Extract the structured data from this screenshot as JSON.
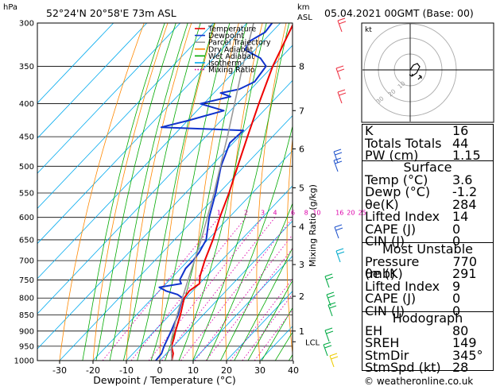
{
  "header": {
    "location": "52°24'N  20°58'E  73m  ASL",
    "datetime": "05.04.2021  00GMT  (Base: 00)",
    "hpa_label": "hPa",
    "km_label": "km",
    "asl_label": "ASL"
  },
  "legend": {
    "items": [
      {
        "label": "Temperature",
        "color": "#ee0000",
        "style": "solid"
      },
      {
        "label": "Dewpoint",
        "color": "#1133cc",
        "style": "solid"
      },
      {
        "label": "Parcel Trajectory",
        "color": "#999999",
        "style": "solid"
      },
      {
        "label": "Dry Adiabat",
        "color": "#ff8800",
        "style": "solid"
      },
      {
        "label": "Wet Adiabat",
        "color": "#00aa00",
        "style": "solid"
      },
      {
        "label": "Isotherm",
        "color": "#00aaee",
        "style": "solid"
      },
      {
        "label": "Mixing Ratio",
        "color": "#dd00aa",
        "style": "dotted"
      }
    ]
  },
  "chart_data": {
    "type": "line",
    "xlabel": "Dewpoint / Temperature (°C)",
    "ylabel": "",
    "right_axis_label": "Mixing Ratio (g/kg)",
    "xlim": [
      -35,
      40
    ],
    "ylim": [
      300,
      1000
    ],
    "log_y": true,
    "skew": true,
    "grid": true,
    "x_ticks": [
      "-30",
      "-20",
      "-10",
      "0",
      "10",
      "20",
      "30",
      "40"
    ],
    "pressure_levels": [
      "300",
      "350",
      "400",
      "450",
      "500",
      "550",
      "600",
      "650",
      "700",
      "750",
      "800",
      "850",
      "900",
      "950",
      "1000"
    ],
    "km_ticks": [
      {
        "label": "8",
        "p": 350
      },
      {
        "label": "7",
        "p": 410
      },
      {
        "label": "6",
        "p": 470
      },
      {
        "label": "5",
        "p": 540
      },
      {
        "label": "4",
        "p": 620
      },
      {
        "label": "3",
        "p": 710
      },
      {
        "label": "2",
        "p": 795
      },
      {
        "label": "1",
        "p": 900
      }
    ],
    "lcl_label": "LCL",
    "lcl_p": 935,
    "mixing_ratio_labels": [
      "1",
      "2",
      "3",
      "4",
      "6",
      "8",
      "10",
      "16",
      "20",
      "25"
    ],
    "series": [
      {
        "name": "Temperature",
        "color": "#ee0000",
        "points": [
          {
            "p": 1000,
            "t": 3.6
          },
          {
            "p": 975,
            "t": 2.0
          },
          {
            "p": 950,
            "t": -0.6
          },
          {
            "p": 925,
            "t": -2.0
          },
          {
            "p": 900,
            "t": -3.7
          },
          {
            "p": 850,
            "t": -6.8
          },
          {
            "p": 800,
            "t": -10.5
          },
          {
            "p": 780,
            "t": -11.0
          },
          {
            "p": 760,
            "t": -10.0
          },
          {
            "p": 740,
            "t": -12.0
          },
          {
            "p": 700,
            "t": -15.0
          },
          {
            "p": 650,
            "t": -18.5
          },
          {
            "p": 600,
            "t": -22.8
          },
          {
            "p": 550,
            "t": -27.0
          },
          {
            "p": 500,
            "t": -32.0
          },
          {
            "p": 450,
            "t": -37.5
          },
          {
            "p": 400,
            "t": -43.5
          },
          {
            "p": 350,
            "t": -50.0
          },
          {
            "p": 320,
            "t": -53.5
          },
          {
            "p": 300,
            "t": -56.0
          }
        ]
      },
      {
        "name": "Dewpoint",
        "color": "#1133cc",
        "points": [
          {
            "p": 1000,
            "t": -1.2
          },
          {
            "p": 975,
            "t": -1.5
          },
          {
            "p": 950,
            "t": -2.8
          },
          {
            "p": 900,
            "t": -5.0
          },
          {
            "p": 850,
            "t": -7.5
          },
          {
            "p": 800,
            "t": -11.0
          },
          {
            "p": 790,
            "t": -13.5
          },
          {
            "p": 780,
            "t": -18.0
          },
          {
            "p": 770,
            "t": -21.0
          },
          {
            "p": 760,
            "t": -15.5
          },
          {
            "p": 750,
            "t": -17.0
          },
          {
            "p": 720,
            "t": -18.5
          },
          {
            "p": 700,
            "t": -18.5
          },
          {
            "p": 680,
            "t": -19.0
          },
          {
            "p": 650,
            "t": -20.5
          },
          {
            "p": 600,
            "t": -26.0
          },
          {
            "p": 550,
            "t": -31.0
          },
          {
            "p": 500,
            "t": -37.0
          },
          {
            "p": 460,
            "t": -41.0
          },
          {
            "p": 440,
            "t": -40.5
          },
          {
            "p": 435,
            "t": -66.0
          },
          {
            "p": 425,
            "t": -60.0
          },
          {
            "p": 410,
            "t": -52.0
          },
          {
            "p": 400,
            "t": -61.0
          },
          {
            "p": 390,
            "t": -54.0
          },
          {
            "p": 385,
            "t": -58.0
          },
          {
            "p": 380,
            "t": -53.5
          },
          {
            "p": 370,
            "t": -51.0
          },
          {
            "p": 350,
            "t": -52.0
          },
          {
            "p": 340,
            "t": -56.0
          },
          {
            "p": 330,
            "t": -63.0
          },
          {
            "p": 320,
            "t": -64.0
          },
          {
            "p": 310,
            "t": -62.0
          },
          {
            "p": 300,
            "t": -62.5
          }
        ]
      },
      {
        "name": "Parcel Trajectory",
        "color": "#999999",
        "points": [
          {
            "p": 1000,
            "t": 3.6
          },
          {
            "p": 935,
            "t": -2.0
          },
          {
            "p": 850,
            "t": -7.8
          },
          {
            "p": 750,
            "t": -14.5
          },
          {
            "p": 650,
            "t": -22.0
          },
          {
            "p": 550,
            "t": -31.5
          },
          {
            "p": 450,
            "t": -43.5
          },
          {
            "p": 350,
            "t": -59.0
          },
          {
            "p": 300,
            "t": -68.0
          }
        ]
      }
    ]
  },
  "hodograph": {
    "label": "kt",
    "ring_labels": [
      "10",
      "20",
      "30"
    ]
  },
  "indices": {
    "rows": [
      {
        "label": "K",
        "value": "16"
      },
      {
        "label": "Totals Totals",
        "value": "44"
      },
      {
        "label": "PW (cm)",
        "value": "1.15"
      }
    ]
  },
  "surface": {
    "title": "Surface",
    "rows": [
      {
        "label": "Temp (°C)",
        "value": "3.6"
      },
      {
        "label": "Dewp (°C)",
        "value": "-1.2"
      },
      {
        "label": "θe(K)",
        "value": "284"
      },
      {
        "label": "Lifted Index",
        "value": "14"
      },
      {
        "label": "CAPE (J)",
        "value": "0"
      },
      {
        "label": "CIN (J)",
        "value": "0"
      }
    ]
  },
  "most_unstable": {
    "title": "Most Unstable",
    "rows": [
      {
        "label": "Pressure (mb)",
        "value": "770"
      },
      {
        "label": "θe (K)",
        "value": "291"
      },
      {
        "label": "Lifted Index",
        "value": "9"
      },
      {
        "label": "CAPE (J)",
        "value": "0"
      },
      {
        "label": "CIN (J)",
        "value": "0"
      }
    ]
  },
  "hodograph_table": {
    "title": "Hodograph",
    "rows": [
      {
        "label": "EH",
        "value": "80"
      },
      {
        "label": "SREH",
        "value": "149"
      },
      {
        "label": "StmDir",
        "value": "345°"
      },
      {
        "label": "StmSpd (kt)",
        "value": "28"
      }
    ]
  },
  "footer": {
    "copyright": "© weatheronline.co.uk"
  }
}
